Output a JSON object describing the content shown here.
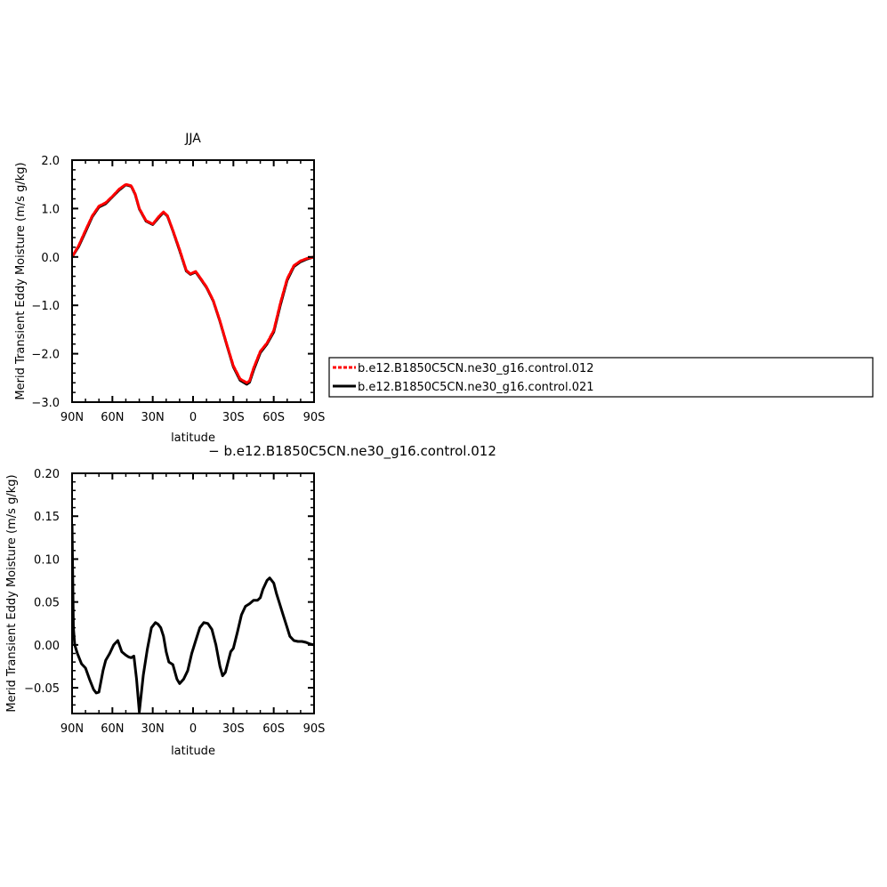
{
  "chart_data": [
    {
      "type": "line",
      "title": "JJA",
      "xlabel": "latitude",
      "ylabel": "Merid Transient Eddy Moisture (m/s g/kg)",
      "xlim": [
        90,
        -90
      ],
      "ylim": [
        -3.0,
        2.0
      ],
      "x_ticks": [
        90,
        60,
        30,
        0,
        -30,
        -60,
        -90
      ],
      "x_tick_labels": [
        "90N",
        "60N",
        "30N",
        "0",
        "30S",
        "60S",
        "90S"
      ],
      "y_ticks": [
        -3.0,
        -2.0,
        -1.0,
        0.0,
        1.0,
        2.0
      ],
      "y_tick_labels": [
        "−3.0",
        "−2.0",
        "−1.0",
        "0.0",
        "1.0",
        "2.0"
      ],
      "legend": {
        "placement": "right",
        "entries": [
          {
            "label": "b.e12.B1850C5CN.ne30_g16.control.012",
            "color": "#ff0000",
            "dash": "dashed"
          },
          {
            "label": "b.e12.B1850C5CN.ne30_g16.control.021",
            "color": "#000000",
            "dash": "solid"
          }
        ]
      },
      "series": [
        {
          "name": "b.e12.B1850C5CN.ne30_g16.control.012",
          "color": "#ff0000",
          "dash": "dashed",
          "x": [
            90,
            85,
            80,
            75,
            70,
            65,
            60,
            55,
            50,
            46,
            43,
            40,
            35,
            30,
            25,
            22,
            19,
            15,
            10,
            5,
            2,
            -2,
            -5,
            -10,
            -15,
            -20,
            -25,
            -30,
            -35,
            -40,
            -42,
            -45,
            -50,
            -55,
            -60,
            -65,
            -70,
            -75,
            -80,
            -85,
            -90
          ],
          "y": [
            0.0,
            0.24,
            0.55,
            0.85,
            1.05,
            1.12,
            1.25,
            1.4,
            1.5,
            1.47,
            1.3,
            1.0,
            0.75,
            0.68,
            0.85,
            0.93,
            0.85,
            0.55,
            0.15,
            -0.28,
            -0.35,
            -0.3,
            -0.42,
            -0.62,
            -0.9,
            -1.32,
            -1.8,
            -2.25,
            -2.52,
            -2.6,
            -2.56,
            -2.3,
            -1.95,
            -1.78,
            -1.52,
            -0.95,
            -0.45,
            -0.18,
            -0.08,
            -0.03,
            0.0
          ]
        },
        {
          "name": "b.e12.B1850C5CN.ne30_g16.control.021",
          "color": "#000000",
          "dash": "solid",
          "x": [
            90,
            85,
            80,
            75,
            70,
            65,
            60,
            55,
            50,
            46,
            43,
            40,
            35,
            30,
            25,
            22,
            19,
            15,
            10,
            5,
            2,
            -2,
            -5,
            -10,
            -15,
            -20,
            -25,
            -30,
            -35,
            -40,
            -42,
            -45,
            -50,
            -55,
            -60,
            -65,
            -70,
            -75,
            -80,
            -85,
            -90
          ],
          "y": [
            0.0,
            0.22,
            0.52,
            0.83,
            1.03,
            1.1,
            1.24,
            1.38,
            1.49,
            1.46,
            1.29,
            0.99,
            0.74,
            0.67,
            0.83,
            0.92,
            0.84,
            0.54,
            0.13,
            -0.29,
            -0.36,
            -0.31,
            -0.43,
            -0.63,
            -0.91,
            -1.33,
            -1.81,
            -2.27,
            -2.55,
            -2.63,
            -2.59,
            -2.34,
            -1.98,
            -1.8,
            -1.55,
            -0.99,
            -0.48,
            -0.2,
            -0.1,
            -0.04,
            0.0
          ]
        }
      ]
    },
    {
      "type": "line",
      "title": "− b.e12.B1850C5CN.ne30_g16.control.012",
      "xlabel": "latitude",
      "ylabel": "Merid Transient Eddy Moisture (m/s g/kg)",
      "xlim": [
        90,
        -90
      ],
      "ylim": [
        -0.08,
        0.2
      ],
      "x_ticks": [
        90,
        60,
        30,
        0,
        -30,
        -60,
        -90
      ],
      "x_tick_labels": [
        "90N",
        "60N",
        "30N",
        "0",
        "30S",
        "60S",
        "90S"
      ],
      "y_ticks": [
        -0.05,
        0.0,
        0.05,
        0.1,
        0.15,
        0.2
      ],
      "y_tick_labels": [
        "−0.05",
        "0.00",
        "0.05",
        "0.10",
        "0.15",
        "0.20"
      ],
      "series": [
        {
          "color": "#000000",
          "dash": "solid",
          "x": [
            90,
            89,
            88,
            86,
            83,
            80,
            77,
            74,
            72,
            70,
            67,
            65,
            62,
            59,
            56,
            53,
            50,
            48,
            46,
            44,
            42,
            40,
            37,
            34,
            31,
            28,
            26,
            24,
            22,
            20,
            18,
            15,
            12,
            10,
            7,
            4,
            1,
            -2,
            -5,
            -8,
            -11,
            -14,
            -17,
            -20,
            -22,
            -24,
            -26,
            -28,
            -30,
            -33,
            -36,
            -39,
            -42,
            -45,
            -48,
            -50,
            -52,
            -55,
            -57,
            -60,
            -62,
            -64,
            -67,
            -70,
            -72,
            -75,
            -78,
            -81,
            -84,
            -87,
            -90
          ],
          "y": [
            0.14,
            0.02,
            0.0,
            -0.01,
            -0.022,
            -0.027,
            -0.04,
            -0.052,
            -0.056,
            -0.055,
            -0.03,
            -0.018,
            -0.01,
            0.0,
            0.005,
            -0.008,
            -0.012,
            -0.014,
            -0.015,
            -0.013,
            -0.04,
            -0.078,
            -0.035,
            -0.005,
            0.02,
            0.026,
            0.024,
            0.02,
            0.01,
            -0.008,
            -0.02,
            -0.023,
            -0.04,
            -0.045,
            -0.04,
            -0.03,
            -0.01,
            0.005,
            0.02,
            0.026,
            0.025,
            0.018,
            0.0,
            -0.025,
            -0.036,
            -0.032,
            -0.02,
            -0.008,
            -0.004,
            0.015,
            0.035,
            0.045,
            0.048,
            0.052,
            0.052,
            0.055,
            0.065,
            0.075,
            0.078,
            0.072,
            0.06,
            0.05,
            0.035,
            0.02,
            0.01,
            0.005,
            0.004,
            0.004,
            0.003,
            0.001,
            0.0
          ]
        }
      ]
    }
  ]
}
